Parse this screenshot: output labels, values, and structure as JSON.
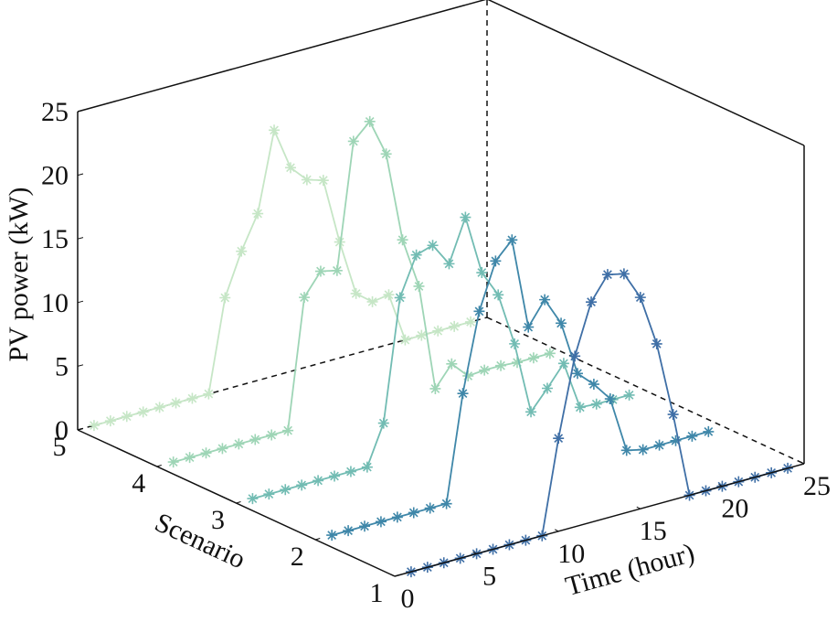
{
  "chart_data": {
    "type": "line3d",
    "xlabel": "Time (hour)",
    "ylabel": "Scenario",
    "zlabel": "PV power (kW)",
    "x": [
      1,
      2,
      3,
      4,
      5,
      6,
      7,
      8,
      9,
      10,
      11,
      12,
      13,
      14,
      15,
      16,
      17,
      18,
      19,
      20,
      21,
      22,
      23,
      24
    ],
    "xlim": [
      0,
      25
    ],
    "xticks": [
      0,
      5,
      10,
      15,
      20,
      25
    ],
    "ylim": [
      1,
      5
    ],
    "yticks": [
      1,
      2,
      3,
      4,
      5
    ],
    "zlim": [
      0,
      25
    ],
    "zticks": [
      0,
      5,
      10,
      15,
      20,
      25
    ],
    "grid": false,
    "series": [
      {
        "scenario": 1,
        "color": "#3f6fa6",
        "values": [
          0,
          0,
          0,
          0,
          0,
          0,
          0,
          0,
          0,
          7.3,
          13.4,
          17.3,
          19.1,
          18.8,
          16.6,
          12.6,
          6.7,
          0,
          0,
          0,
          0,
          0,
          0,
          0
        ]
      },
      {
        "scenario": 2,
        "color": "#3f87a9",
        "values": [
          0,
          0,
          0,
          0,
          0,
          0,
          0,
          0,
          8.3,
          14.4,
          18.0,
          19.3,
          12.1,
          13.9,
          11.7,
          7.4,
          6.2,
          4.7,
          0.3,
          0,
          0,
          0,
          0,
          0
        ]
      },
      {
        "scenario": 3,
        "color": "#72bcb3",
        "values": [
          0,
          0,
          0,
          0,
          0,
          0,
          0,
          0,
          3.1,
          12.6,
          15.6,
          16.0,
          14.2,
          17.5,
          12.8,
          10.7,
          6.5,
          0.8,
          2.3,
          3.9,
          0.1,
          0,
          0,
          0
        ]
      },
      {
        "scenario": 4,
        "color": "#9ed5b6",
        "values": [
          0,
          0,
          0,
          0,
          0,
          0,
          0,
          0,
          10.1,
          11.8,
          11.5,
          21.3,
          22.5,
          19.6,
          12.5,
          8.5,
          0.1,
          1.7,
          0.4,
          0.5,
          0.5,
          0.4,
          0.4,
          0.4
        ]
      },
      {
        "scenario": 5,
        "color": "#c6e6c6",
        "values": [
          0,
          0,
          0,
          0,
          0,
          0,
          0,
          0,
          7.2,
          10.5,
          13.1,
          19.3,
          16.0,
          14.7,
          14.3,
          9.1,
          4.7,
          3.7,
          3.9,
          0,
          0,
          0,
          0,
          0
        ]
      }
    ]
  }
}
